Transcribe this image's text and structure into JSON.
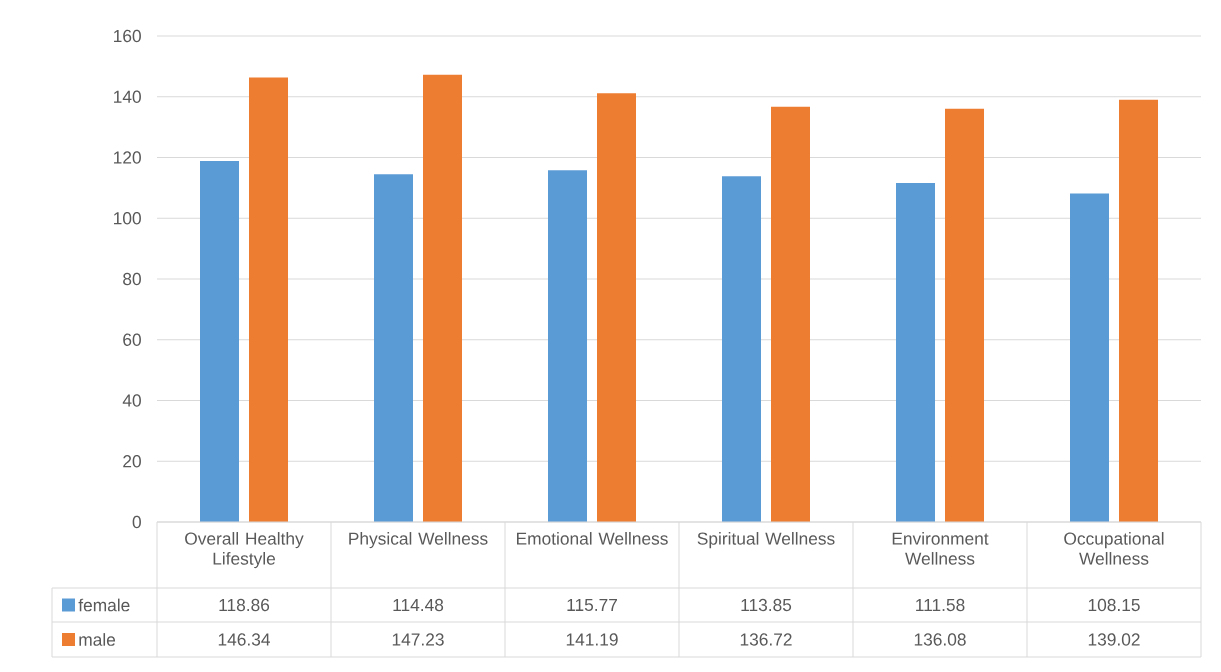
{
  "chart_data": {
    "type": "bar",
    "categories": [
      "Overall Healthy Lifestyle",
      "Physical Wellness",
      "Emotional Wellness",
      "Spiritual Wellness",
      "Environment Wellness",
      "Occupational Wellness"
    ],
    "series": [
      {
        "name": "female",
        "color": "#5b9bd5",
        "values": [
          118.86,
          114.48,
          115.77,
          113.85,
          111.58,
          108.15
        ]
      },
      {
        "name": "male",
        "color": "#ed7d31",
        "values": [
          146.34,
          147.23,
          141.19,
          136.72,
          136.08,
          139.02
        ]
      }
    ],
    "ylim": [
      0,
      160
    ],
    "yticks": [
      0,
      20,
      40,
      60,
      80,
      100,
      120,
      140,
      160
    ],
    "grid": "y",
    "legend": "bottom",
    "data_labels": true
  }
}
